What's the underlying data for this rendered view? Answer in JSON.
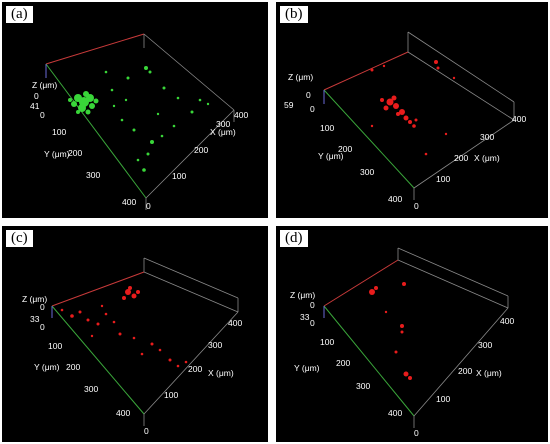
{
  "colors": {
    "background": "#000000",
    "box_edge": "#8a8a8a",
    "x_axis": "#c83a3a",
    "y_axis": "#3aa63a",
    "z_axis": "#6a6ad8",
    "label": "#ffffff",
    "signal_green": "#39d639",
    "signal_red": "#e81c1c"
  },
  "panels": [
    {
      "tag": "(a)",
      "signal": "green",
      "z_label": "Z (μm)",
      "z_ticks": [
        "0",
        "41"
      ],
      "y_label": "Y (μm)",
      "y_ticks": [
        "0",
        "100",
        "200",
        "300",
        "400"
      ],
      "x_label": "X (μm)",
      "x_ticks": [
        "0",
        "100",
        "200",
        "300",
        "400"
      ]
    },
    {
      "tag": "(b)",
      "signal": "red",
      "z_label": "Z (μm)",
      "z_ticks": [
        "0",
        "59"
      ],
      "y_label": "Y (μm)",
      "y_ticks": [
        "0",
        "100",
        "200",
        "300",
        "400"
      ],
      "x_label": "X (μm)",
      "x_ticks": [
        "0",
        "100",
        "200",
        "300",
        "400"
      ]
    },
    {
      "tag": "(c)",
      "signal": "red",
      "z_label": "Z (μm)",
      "z_ticks": [
        "0",
        "33"
      ],
      "y_label": "Y (μm)",
      "y_ticks": [
        "0",
        "100",
        "200",
        "300",
        "400"
      ],
      "x_label": "X (μm)",
      "x_ticks": [
        "0",
        "100",
        "200",
        "300",
        "400"
      ]
    },
    {
      "tag": "(d)",
      "signal": "red",
      "z_label": "Z (μm)",
      "z_ticks": [
        "0",
        "33"
      ],
      "y_label": "Y (μm)",
      "y_ticks": [
        "0",
        "100",
        "200",
        "300",
        "400"
      ],
      "x_label": "X (μm)",
      "x_ticks": [
        "0",
        "100",
        "200",
        "300",
        "400"
      ]
    }
  ]
}
